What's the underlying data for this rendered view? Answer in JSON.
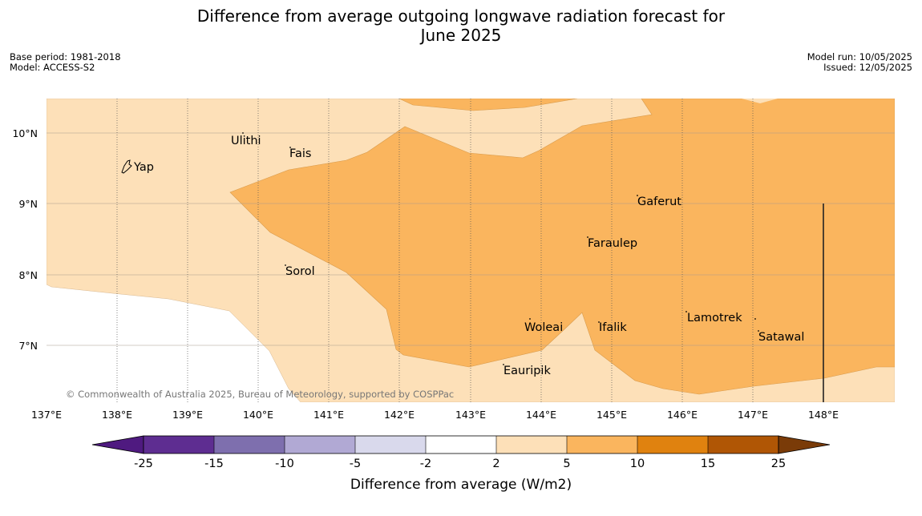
{
  "title": {
    "line1": "Difference from average outgoing longwave radiation forecast for",
    "line2": "June 2025"
  },
  "meta_left": {
    "base_period": "Base period: 1981-2018",
    "model": "Model: ACCESS-S2"
  },
  "meta_right": {
    "model_run": "Model run: 10/05/2025",
    "issued": "Issued: 12/05/2025"
  },
  "map": {
    "lon_labels": [
      "137°E",
      "138°E",
      "139°E",
      "140°E",
      "141°E",
      "142°E",
      "143°E",
      "144°E",
      "145°E",
      "146°E",
      "147°E",
      "148°E"
    ],
    "lat_labels": [
      "10°N",
      "9°N",
      "8°N",
      "7°N"
    ],
    "places": [
      "Yap",
      "Ulithi",
      "Fais",
      "Gaferut",
      "Faraulep",
      "Sorol",
      "Woleai",
      "Ifalik",
      "Lamotrek",
      "Satawal",
      "Eauripik"
    ],
    "copyright": "© Commonwealth of Australia 2025, Bureau of Meteorology, supported by COSPPac",
    "fill_colors": {
      "light_orange": "#fde0b8",
      "mid_orange": "#fab55e"
    }
  },
  "colorbar": {
    "ticks": [
      "-25",
      "-15",
      "-10",
      "-5",
      "-2",
      "2",
      "5",
      "10",
      "15",
      "25"
    ],
    "colors": [
      "#4f1a80",
      "#5e2d91",
      "#7e6fae",
      "#b1a9d4",
      "#d9d9ec",
      "#ffffff",
      "#fde0b8",
      "#fab55e",
      "#e0820f",
      "#b05605",
      "#7a3b08"
    ],
    "label": "Difference from average (W/m2)"
  }
}
